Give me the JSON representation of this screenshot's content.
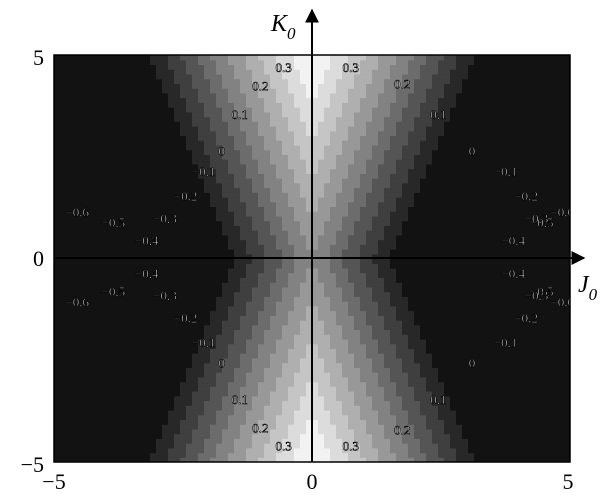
{
  "chart_data": {
    "type": "heatmap",
    "title": "",
    "xlabel": {
      "symbol": "J",
      "subscript": "0"
    },
    "ylabel": {
      "symbol": "K",
      "subscript": "0"
    },
    "xlim": [
      -5,
      5
    ],
    "ylim": [
      -5,
      5
    ],
    "xticks": [
      "−5",
      "0",
      "5"
    ],
    "yticks": [
      "−5",
      "0",
      "5"
    ],
    "grid": false,
    "legend": "none",
    "colormap": "grayscale, lighter = higher value",
    "contour_levels": [
      -0.6,
      -0.5,
      -0.4,
      -0.3,
      -0.2,
      -0.1,
      0,
      0.1,
      0.2,
      0.3
    ],
    "contour_labels": [
      {
        "text": "0.3",
        "x": -0.55,
        "y": 4.65
      },
      {
        "text": "0.2",
        "x": -1.0,
        "y": 4.2
      },
      {
        "text": "0.1",
        "x": -1.4,
        "y": 3.5
      },
      {
        "text": "0",
        "x": -1.75,
        "y": 2.6
      },
      {
        "text": "−0.1",
        "x": -2.1,
        "y": 2.1
      },
      {
        "text": "−0.2",
        "x": -2.45,
        "y": 1.5
      },
      {
        "text": "−0.3",
        "x": -2.85,
        "y": 0.95
      },
      {
        "text": "−0.4",
        "x": -3.2,
        "y": 0.4
      },
      {
        "text": "−0.5",
        "x": -3.85,
        "y": 0.85
      },
      {
        "text": "−0.6",
        "x": -4.55,
        "y": 1.1
      },
      {
        "text": "0.3",
        "x": 0.75,
        "y": 4.65
      },
      {
        "text": "0.2",
        "x": 1.75,
        "y": 4.25
      },
      {
        "text": "0.1",
        "x": 2.45,
        "y": 3.5
      },
      {
        "text": "0",
        "x": 3.1,
        "y": 2.6
      },
      {
        "text": "−0.1",
        "x": 3.75,
        "y": 2.1
      },
      {
        "text": "−0.2",
        "x": 4.15,
        "y": 1.5
      },
      {
        "text": "−0.3",
        "x": 4.35,
        "y": 0.95
      },
      {
        "text": "−0.4",
        "x": 3.9,
        "y": 0.4
      },
      {
        "text": "−0.5",
        "x": 4.45,
        "y": 0.85
      },
      {
        "text": "−0.6",
        "x": 4.85,
        "y": 1.1
      },
      {
        "text": "−0.4",
        "x": -3.2,
        "y": -0.4
      },
      {
        "text": "−0.5",
        "x": -3.85,
        "y": -0.85
      },
      {
        "text": "−0.6",
        "x": -4.55,
        "y": -1.1
      },
      {
        "text": "−0.3",
        "x": -2.85,
        "y": -0.95
      },
      {
        "text": "−0.2",
        "x": -2.45,
        "y": -1.5
      },
      {
        "text": "−0.1",
        "x": -2.1,
        "y": -2.1
      },
      {
        "text": "0",
        "x": -1.75,
        "y": -2.6
      },
      {
        "text": "0.1",
        "x": -1.4,
        "y": -3.5
      },
      {
        "text": "0.2",
        "x": -1.0,
        "y": -4.2
      },
      {
        "text": "0.3",
        "x": -0.55,
        "y": -4.65
      },
      {
        "text": "−0.4",
        "x": 3.9,
        "y": -0.4
      },
      {
        "text": "−0.5",
        "x": 4.45,
        "y": -0.85
      },
      {
        "text": "−0.6",
        "x": 4.85,
        "y": -1.1
      },
      {
        "text": "−0.3",
        "x": 4.35,
        "y": -0.95
      },
      {
        "text": "−0.2",
        "x": 4.15,
        "y": -1.5
      },
      {
        "text": "−0.1",
        "x": 3.75,
        "y": -2.1
      },
      {
        "text": "0",
        "x": 3.1,
        "y": -2.6
      },
      {
        "text": "0.1",
        "x": 2.45,
        "y": -3.5
      },
      {
        "text": "0.2",
        "x": 1.75,
        "y": -4.25
      },
      {
        "text": "0.3",
        "x": 0.75,
        "y": -4.65
      }
    ]
  }
}
